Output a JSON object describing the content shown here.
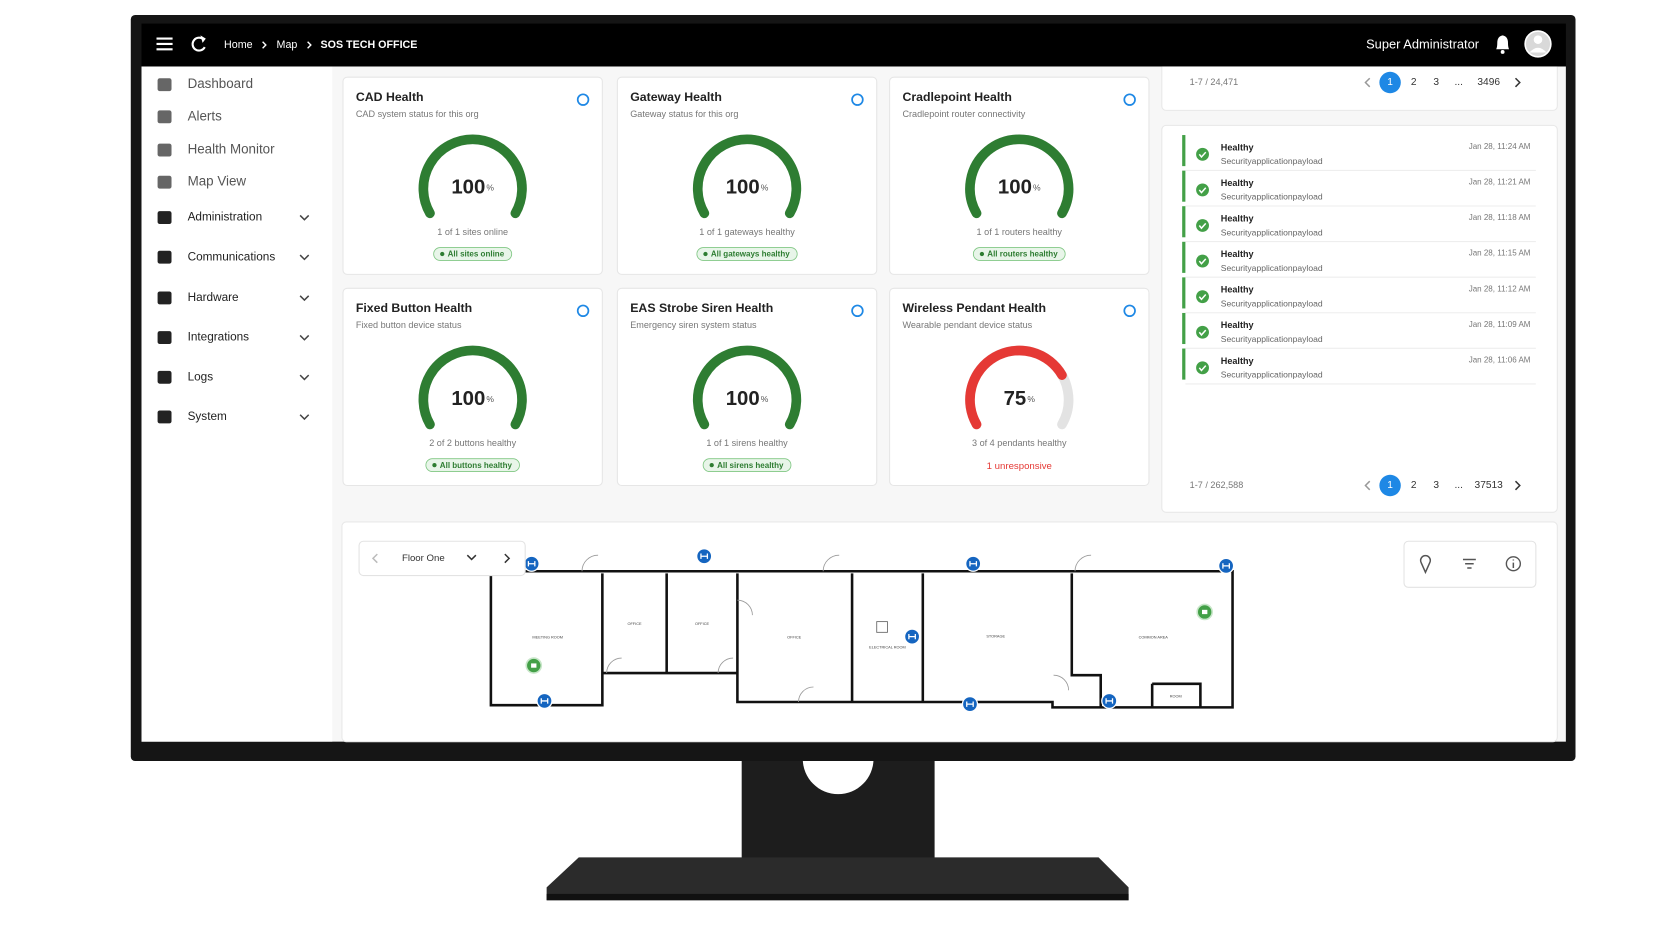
{
  "header": {
    "breadcrumbs": [
      "Home",
      "Map",
      "SOS TECH OFFICE"
    ],
    "user": "Super Administrator"
  },
  "sidebar": {
    "items": [
      {
        "label": "Dashboard",
        "expandable": false
      },
      {
        "label": "Alerts",
        "expandable": false
      },
      {
        "label": "Health Monitor",
        "expandable": false
      },
      {
        "label": "Map View",
        "expandable": false
      },
      {
        "label": "Administration",
        "expandable": true
      },
      {
        "label": "Communications",
        "expandable": true
      },
      {
        "label": "Hardware",
        "expandable": true
      },
      {
        "label": "Integrations",
        "expandable": true
      },
      {
        "label": "Logs",
        "expandable": true
      },
      {
        "label": "System",
        "expandable": true
      }
    ]
  },
  "cards": [
    {
      "title": "CAD Health",
      "subtitle": "CAD system status for this org",
      "value": 100,
      "unit": "%",
      "color": "#2e7d32",
      "detail": "1 of 1 sites online",
      "badge": "All sites online",
      "status": "ok"
    },
    {
      "title": "Gateway Health",
      "subtitle": "Gateway status for this org",
      "value": 100,
      "unit": "%",
      "color": "#2e7d32",
      "detail": "1 of 1 gateways healthy",
      "badge": "All gateways healthy",
      "status": "ok"
    },
    {
      "title": "Cradlepoint Health",
      "subtitle": "Cradlepoint router connectivity",
      "value": 100,
      "unit": "%",
      "color": "#2e7d32",
      "detail": "1 of 1 routers healthy",
      "badge": "All routers healthy",
      "status": "ok"
    },
    {
      "title": "Fixed Button Health",
      "subtitle": "Fixed button device status",
      "value": 100,
      "unit": "%",
      "color": "#2e7d32",
      "detail": "2 of 2 buttons healthy",
      "badge": "All buttons healthy",
      "status": "ok"
    },
    {
      "title": "EAS Strobe Siren Health",
      "subtitle": "Emergency siren system status",
      "value": 100,
      "unit": "%",
      "color": "#2e7d32",
      "detail": "1 of 1 sirens healthy",
      "badge": "All sirens healthy",
      "status": "ok"
    },
    {
      "title": "Wireless Pendant Health",
      "subtitle": "Wearable pendant device status",
      "value": 75,
      "unit": "%",
      "color": "#e53935",
      "detail": "3 of 4 pendants healthy",
      "badge": "1 unresponsive",
      "status": "alert"
    }
  ],
  "alerts_pager": {
    "range": "1-7 / 24,471",
    "pages": [
      "1",
      "2",
      "3",
      "...",
      "3496"
    ],
    "current": 0
  },
  "events": {
    "items": [
      {
        "status": "Healthy",
        "detail": "Securityapplicationpayload",
        "time": "Jan 28, 11:24 AM"
      },
      {
        "status": "Healthy",
        "detail": "Securityapplicationpayload",
        "time": "Jan 28, 11:21 AM"
      },
      {
        "status": "Healthy",
        "detail": "Securityapplicationpayload",
        "time": "Jan 28, 11:18 AM"
      },
      {
        "status": "Healthy",
        "detail": "Securityapplicationpayload",
        "time": "Jan 28, 11:15 AM"
      },
      {
        "status": "Healthy",
        "detail": "Securityapplicationpayload",
        "time": "Jan 28, 11:12 AM"
      },
      {
        "status": "Healthy",
        "detail": "Securityapplicationpayload",
        "time": "Jan 28, 11:09 AM"
      },
      {
        "status": "Healthy",
        "detail": "Securityapplicationpayload",
        "time": "Jan 28, 11:06 AM"
      }
    ],
    "pager": {
      "range": "1-7 / 262,588",
      "pages": [
        "1",
        "2",
        "3",
        "...",
        "37513"
      ],
      "current": 0
    }
  },
  "floor_plan": {
    "floor": "Floor One",
    "rooms": [
      "MEETING ROOM",
      "OFFICE",
      "OFFICE",
      "OFFICE",
      "ELECTRICAL ROOM",
      "STORAGE",
      "COMMON AREA",
      "ROOM"
    ]
  }
}
